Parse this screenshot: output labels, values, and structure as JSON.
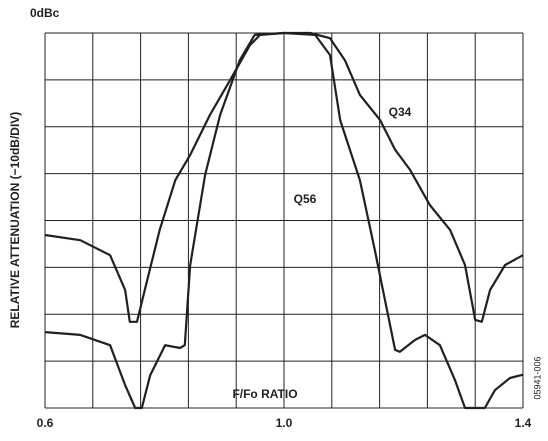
{
  "chart_data": {
    "type": "line",
    "y_label": "RELATIVE ATTENUATION (−10dB/DIV)",
    "top_label": "0dBc",
    "x_label": "F/Fo RATIO",
    "figure_id": "05941-006",
    "xlim": [
      0.6,
      1.4
    ],
    "xticks": [
      0.6,
      {
        "value": 1,
        "label": "1.0"
      },
      1.4
    ],
    "xgrid": [
      0.6,
      0.68,
      0.76,
      0.84,
      0.92,
      1.0,
      1.08,
      1.16,
      1.24,
      1.32,
      1.4
    ],
    "ylim": [
      -80,
      0
    ],
    "yticks": [
      -80,
      -70,
      -60,
      -50,
      -40,
      -30,
      -20,
      -10,
      0
    ],
    "grid": true,
    "series": [
      {
        "name": "Q34",
        "color": "#231f20",
        "x": [
          0.6,
          0.659,
          0.709,
          0.734,
          0.742,
          0.754,
          0.767,
          0.792,
          0.818,
          0.843,
          0.876,
          0.91,
          0.943,
          0.96,
          1.0,
          1.044,
          1.077,
          1.102,
          1.127,
          1.161,
          1.186,
          1.211,
          1.244,
          1.278,
          1.303,
          1.32,
          1.331,
          1.345,
          1.37,
          1.4
        ],
        "values": [
          -43.1,
          -44.2,
          -47.4,
          -54.8,
          -61.6,
          -61.6,
          -54.8,
          -42.0,
          -31.4,
          -26.0,
          -17.5,
          -10.0,
          -2.6,
          -0.4,
          0,
          0,
          -1.1,
          -5.8,
          -13.2,
          -18.6,
          -24.9,
          -29.2,
          -36.7,
          -42.0,
          -49.5,
          -61.2,
          -61.6,
          -54.8,
          -49.5,
          -47.4
        ]
      },
      {
        "name": "Q56",
        "color": "#231f20",
        "x": [
          0.6,
          0.659,
          0.709,
          0.734,
          0.751,
          0.762,
          0.776,
          0.801,
          0.826,
          0.834,
          0.839,
          0.843,
          0.868,
          0.893,
          0.926,
          0.951,
          1.0,
          1.052,
          1.077,
          1.094,
          1.127,
          1.152,
          1.169,
          1.186,
          1.194,
          1.219,
          1.236,
          1.261,
          1.286,
          1.303,
          1.336,
          1.353,
          1.378,
          1.4
        ],
        "values": [
          -63.8,
          -64.4,
          -66.6,
          -75.1,
          -80,
          -80,
          -73.0,
          -66.6,
          -67.2,
          -66.6,
          -57.0,
          -49.5,
          -30.3,
          -17.5,
          -5.8,
          -0.4,
          0,
          -0.4,
          -4.7,
          -18.6,
          -31.4,
          -46.3,
          -57.0,
          -67.6,
          -68.0,
          -65.5,
          -64.4,
          -66.6,
          -74.0,
          -80,
          -80,
          -76.2,
          -73.6,
          -72.9
        ]
      }
    ]
  }
}
